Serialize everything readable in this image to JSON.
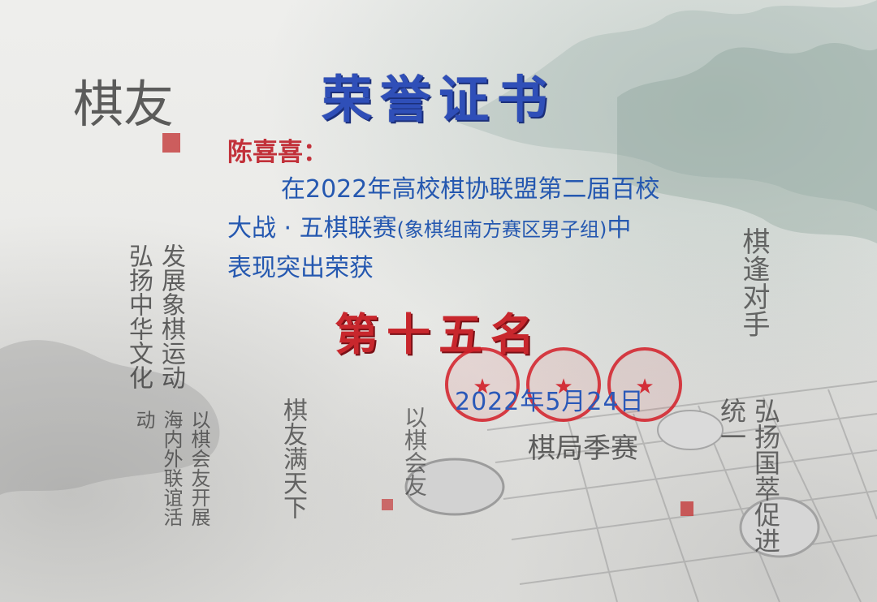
{
  "certificate": {
    "title": "荣誉证书",
    "recipient": "陈喜喜：",
    "body_line1": "在2022年高校棋协联盟第二届百校",
    "body_line2_a": "大战 · 五棋联赛",
    "body_line2_b": "(象棋组南方赛区男子组)",
    "body_line2_c": "中",
    "body_line3": "表现突出荣获",
    "award": "第十五名",
    "date": "2022年5月24日"
  },
  "colors": {
    "title": "#2f4fb8",
    "recipient": "#c2313a",
    "body": "#2558b0",
    "award": "#c8272d",
    "seal": "#d21e28"
  },
  "seals": [
    {
      "name": "seal-red-association"
    },
    {
      "name": "seal-chess-institute"
    },
    {
      "name": "seal-league"
    }
  ],
  "decorations": {
    "calligraphy": [
      "棋友",
      "发展象棋运动弘扬中华文化",
      "以棋会友开展海内外联谊活动",
      "棋友满天下",
      "以棋会友",
      "棋局季赛",
      "弘扬国萃促进统一",
      "棋逢对手"
    ]
  }
}
